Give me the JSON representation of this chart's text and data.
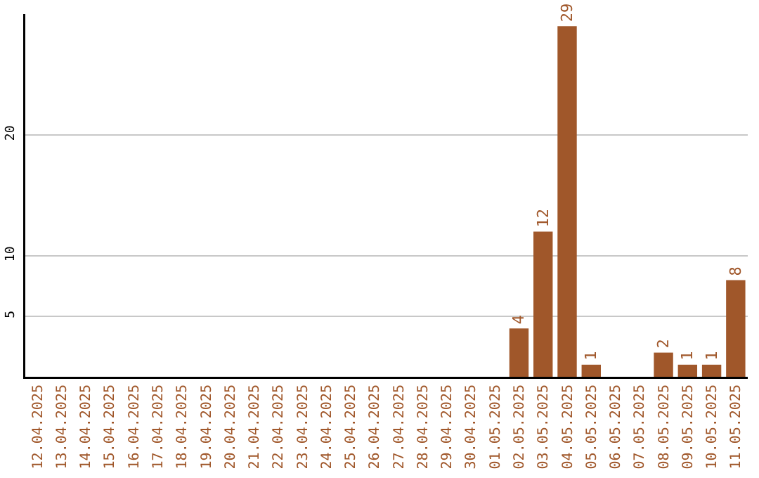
{
  "chart_data": {
    "type": "bar",
    "categories": [
      "12.04.2025",
      "13.04.2025",
      "14.04.2025",
      "15.04.2025",
      "16.04.2025",
      "17.04.2025",
      "18.04.2025",
      "19.04.2025",
      "20.04.2025",
      "21.04.2025",
      "22.04.2025",
      "23.04.2025",
      "24.04.2025",
      "25.04.2025",
      "26.04.2025",
      "27.04.2025",
      "28.04.2025",
      "29.04.2025",
      "30.04.2025",
      "01.05.2025",
      "02.05.2025",
      "03.05.2025",
      "04.05.2025",
      "05.05.2025",
      "06.05.2025",
      "07.05.2025",
      "08.05.2025",
      "09.05.2025",
      "10.05.2025",
      "11.05.2025"
    ],
    "values": [
      0,
      0,
      0,
      0,
      0,
      0,
      0,
      0,
      0,
      0,
      0,
      0,
      0,
      0,
      0,
      0,
      0,
      0,
      0,
      0,
      4,
      12,
      29,
      1,
      0,
      0,
      2,
      1,
      1,
      8
    ],
    "value_labels": [
      null,
      null,
      null,
      null,
      null,
      null,
      null,
      null,
      null,
      null,
      null,
      null,
      null,
      null,
      null,
      null,
      null,
      null,
      null,
      null,
      "4",
      "12",
      "29",
      "1",
      null,
      null,
      "2",
      "1",
      "1",
      "8"
    ],
    "color": "#a0572a",
    "ylim": [
      0,
      30
    ],
    "yticks": [
      5,
      10,
      20
    ],
    "grid": "y",
    "legend": false
  }
}
